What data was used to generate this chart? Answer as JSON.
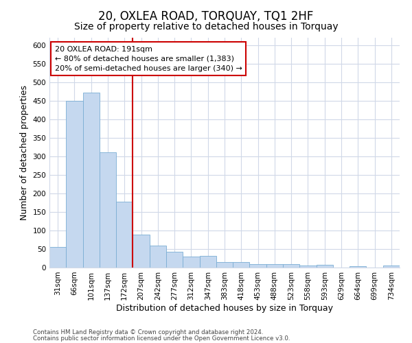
{
  "title": "20, OXLEA ROAD, TORQUAY, TQ1 2HF",
  "subtitle": "Size of property relative to detached houses in Torquay",
  "xlabel": "Distribution of detached houses by size in Torquay",
  "ylabel": "Number of detached properties",
  "categories": [
    "31sqm",
    "66sqm",
    "101sqm",
    "137sqm",
    "172sqm",
    "207sqm",
    "242sqm",
    "277sqm",
    "312sqm",
    "347sqm",
    "383sqm",
    "418sqm",
    "453sqm",
    "488sqm",
    "523sqm",
    "558sqm",
    "593sqm",
    "629sqm",
    "664sqm",
    "699sqm",
    "734sqm"
  ],
  "values": [
    55,
    450,
    472,
    311,
    177,
    88,
    59,
    43,
    30,
    32,
    15,
    15,
    10,
    10,
    10,
    6,
    8,
    0,
    4,
    0,
    5
  ],
  "bar_color": "#c5d8ef",
  "bar_edge_color": "#7aadd4",
  "vline_color": "#cc0000",
  "annotation_line1": "20 OXLEA ROAD: 191sqm",
  "annotation_line2": "← 80% of detached houses are smaller (1,383)",
  "annotation_line3": "20% of semi-detached houses are larger (340) →",
  "annotation_box_color": "#ffffff",
  "annotation_box_edge": "#cc0000",
  "ylim": [
    0,
    620
  ],
  "yticks": [
    0,
    50,
    100,
    150,
    200,
    250,
    300,
    350,
    400,
    450,
    500,
    550,
    600
  ],
  "footer1": "Contains HM Land Registry data © Crown copyright and database right 2024.",
  "footer2": "Contains public sector information licensed under the Open Government Licence v3.0.",
  "title_fontsize": 12,
  "subtitle_fontsize": 10,
  "tick_fontsize": 7.5,
  "label_fontsize": 9,
  "background_color": "#ffffff",
  "plot_bg_color": "#ffffff",
  "grid_color": "#d0d8e8",
  "vline_index": 5
}
